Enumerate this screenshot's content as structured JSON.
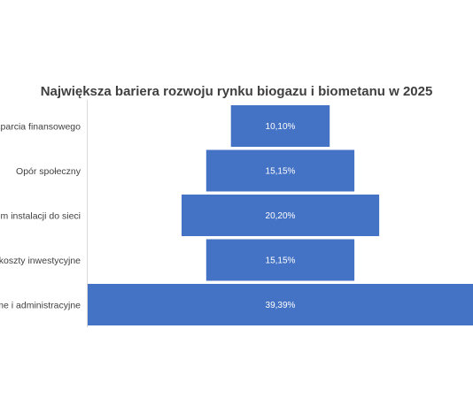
{
  "chart_data": {
    "type": "bar",
    "orientation": "horizontal-centered",
    "title": "Największa bariera rozwoju rynku biogazu i biometanu w 2025",
    "categories": [
      "sparcia finansowego",
      "Opór społeczny",
      "em instalacji do sieci",
      "koszty inwestycyjne",
      "me i administracyjne"
    ],
    "values": [
      10.1,
      15.15,
      20.2,
      15.15,
      39.39
    ],
    "value_labels": [
      "10,10%",
      "15,15%",
      "20,20%",
      "15,15%",
      "39,39%"
    ],
    "xlim": [
      0,
      39.39
    ],
    "grid": false,
    "legend": "none",
    "colors": {
      "bar": "#4472c4",
      "bar_label": "#ffffff",
      "title": "#3f3f3f",
      "category_label": "#404040",
      "axis_line": "#d9d9d9"
    }
  }
}
